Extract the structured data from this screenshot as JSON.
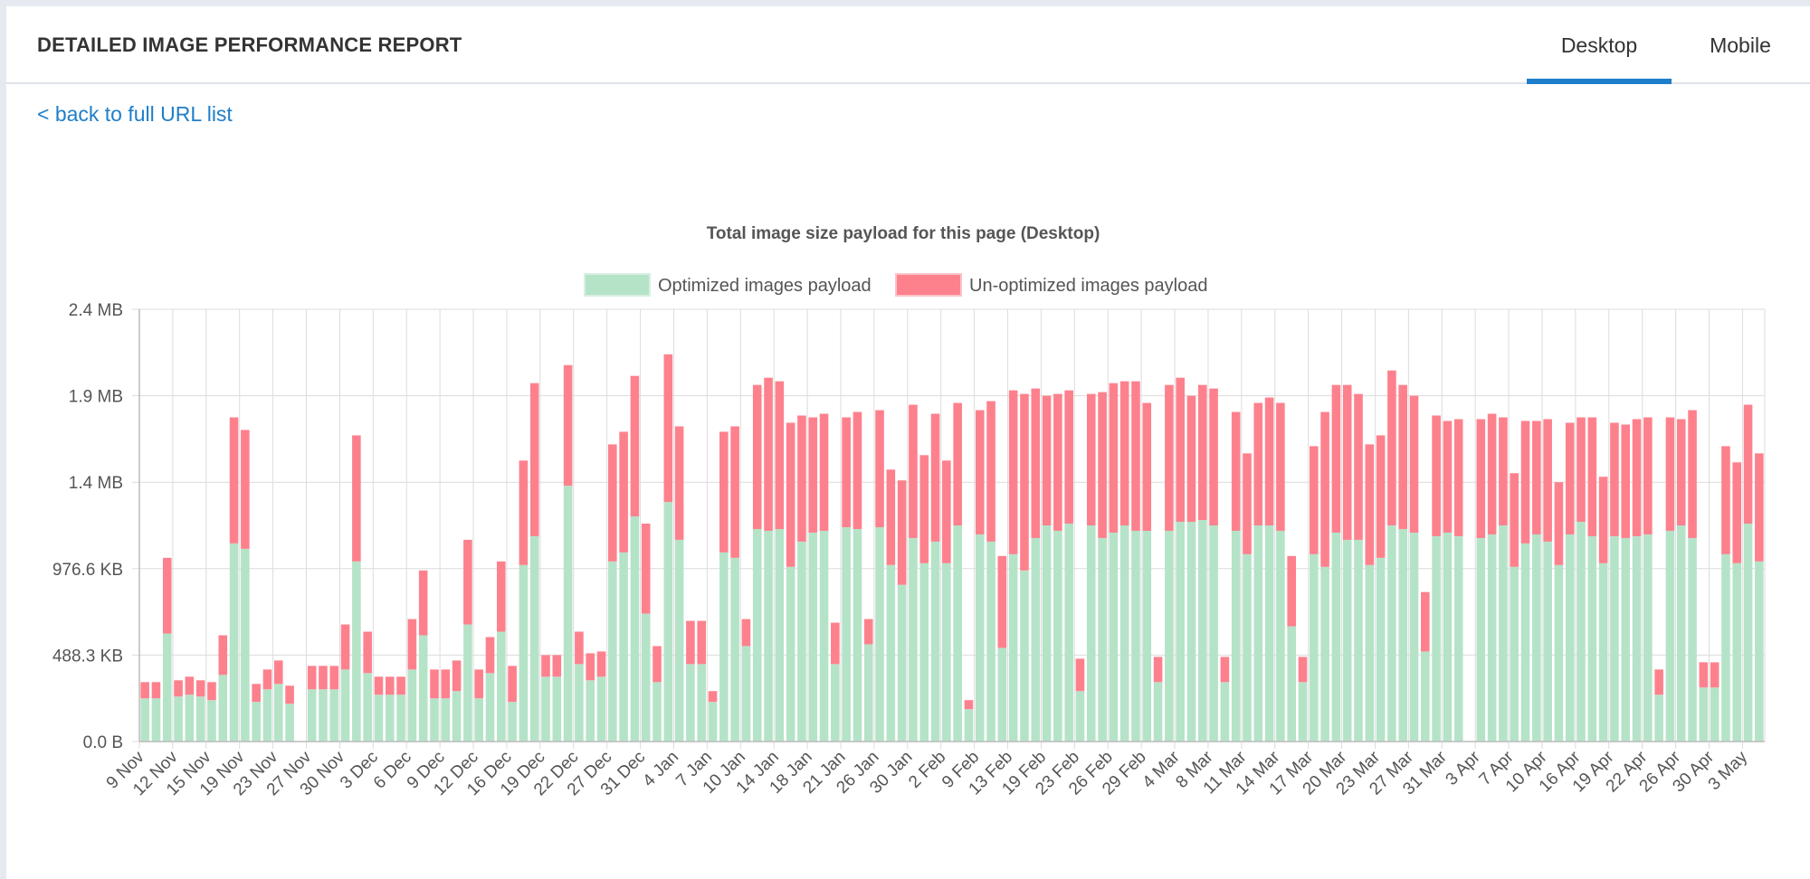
{
  "header": {
    "title": "DETAILED IMAGE PERFORMANCE REPORT"
  },
  "tabs": [
    {
      "label": "Desktop"
    },
    {
      "label": "Mobile"
    }
  ],
  "active_tab": "Desktop",
  "back_link": "< back to full URL list",
  "colors": {
    "optimized": "#b5e3c8",
    "unoptimized": "#fd818d",
    "accent": "#1f7ec9"
  },
  "chart_data": {
    "type": "bar",
    "stacked": true,
    "title": "Total image size payload for this page (Desktop)",
    "legend_position": "top",
    "grid": true,
    "ylim": [
      0,
      2.4
    ],
    "y_unit": "MB",
    "y_ticks": [
      "0.0 B",
      "488.3 KB",
      "976.6 KB",
      "1.4 MB",
      "1.9 MB",
      "2.4 MB"
    ],
    "x_tick_labels": [
      "9 Nov",
      "12 Nov",
      "15 Nov",
      "19 Nov",
      "23 Nov",
      "27 Nov",
      "30 Nov",
      "3 Dec",
      "6 Dec",
      "9 Dec",
      "12 Dec",
      "16 Dec",
      "19 Dec",
      "22 Dec",
      "27 Dec",
      "31 Dec",
      "4 Jan",
      "7 Jan",
      "10 Jan",
      "14 Jan",
      "18 Jan",
      "21 Jan",
      "26 Jan",
      "30 Jan",
      "2 Feb",
      "9 Feb",
      "13 Feb",
      "19 Feb",
      "23 Feb",
      "26 Feb",
      "29 Feb",
      "4 Mar",
      "8 Mar",
      "11 Mar",
      "14 Mar",
      "17 Mar",
      "20 Mar",
      "23 Mar",
      "27 Mar",
      "31 Mar",
      "3 Apr",
      "7 Apr",
      "10 Apr",
      "16 Apr",
      "19 Apr",
      "22 Apr",
      "26 Apr",
      "30 Apr",
      "3 May"
    ],
    "series": [
      {
        "name": "Optimized images payload",
        "values": [
          0.24,
          0.24,
          0.6,
          0.25,
          0.26,
          0.25,
          0.23,
          0.37,
          1.1,
          1.07,
          0.22,
          0.29,
          0.32,
          0.21,
          0,
          0.29,
          0.29,
          0.29,
          0.4,
          1.0,
          0.38,
          0.26,
          0.26,
          0.26,
          0.4,
          0.59,
          0.24,
          0.24,
          0.28,
          0.65,
          0.24,
          0.38,
          0.61,
          0.22,
          0.98,
          1.14,
          0.36,
          0.36,
          1.42,
          0.43,
          0.34,
          0.36,
          1.0,
          1.05,
          1.25,
          0.71,
          0.33,
          1.33,
          1.12,
          0.43,
          0.43,
          0.22,
          1.05,
          1.02,
          0.53,
          1.18,
          1.17,
          1.18,
          0.97,
          1.11,
          1.16,
          1.17,
          0.43,
          1.19,
          1.18,
          0.54,
          1.19,
          0.98,
          0.87,
          1.13,
          0.99,
          1.11,
          0.99,
          1.2,
          0.18,
          1.15,
          1.11,
          0.52,
          1.04,
          0.95,
          1.13,
          1.2,
          1.17,
          1.21,
          0.28,
          1.2,
          1.13,
          1.16,
          1.2,
          1.17,
          1.17,
          0.33,
          1.17,
          1.22,
          1.22,
          1.23,
          1.2,
          0.33,
          1.17,
          1.04,
          1.2,
          1.2,
          1.17,
          0.64,
          0.33,
          1.04,
          0.97,
          1.16,
          1.12,
          1.12,
          0.98,
          1.02,
          1.2,
          1.18,
          1.16,
          0.5,
          1.14,
          1.16,
          1.14,
          0,
          1.13,
          1.15,
          1.2,
          0.97,
          1.1,
          1.15,
          1.11,
          0.98,
          1.15,
          1.22,
          1.14,
          0.99,
          1.14,
          1.13,
          1.14,
          1.15,
          0.26,
          1.17,
          1.2,
          1.13,
          0.3,
          0.3,
          1.04,
          0.99,
          1.21,
          1.0
        ]
      },
      {
        "name": "Un-optimized images payload",
        "values": [
          0.09,
          0.09,
          0.42,
          0.09,
          0.1,
          0.09,
          0.1,
          0.22,
          0.7,
          0.66,
          0.1,
          0.11,
          0.13,
          0.1,
          0,
          0.13,
          0.13,
          0.13,
          0.25,
          0.7,
          0.23,
          0.1,
          0.1,
          0.1,
          0.28,
          0.36,
          0.16,
          0.16,
          0.17,
          0.47,
          0.16,
          0.2,
          0.39,
          0.2,
          0.58,
          0.85,
          0.12,
          0.12,
          0.67,
          0.18,
          0.15,
          0.14,
          0.65,
          0.67,
          0.78,
          0.5,
          0.2,
          0.82,
          0.63,
          0.24,
          0.24,
          0.06,
          0.67,
          0.73,
          0.15,
          0.8,
          0.85,
          0.82,
          0.8,
          0.7,
          0.64,
          0.65,
          0.23,
          0.61,
          0.65,
          0.14,
          0.65,
          0.53,
          0.58,
          0.74,
          0.6,
          0.71,
          0.57,
          0.68,
          0.05,
          0.69,
          0.78,
          0.51,
          0.91,
          0.98,
          0.83,
          0.72,
          0.76,
          0.74,
          0.18,
          0.73,
          0.81,
          0.83,
          0.8,
          0.83,
          0.71,
          0.14,
          0.81,
          0.8,
          0.7,
          0.75,
          0.76,
          0.14,
          0.66,
          0.56,
          0.68,
          0.71,
          0.71,
          0.39,
          0.14,
          0.6,
          0.86,
          0.82,
          0.86,
          0.81,
          0.67,
          0.68,
          0.86,
          0.8,
          0.76,
          0.33,
          0.67,
          0.62,
          0.65,
          0,
          0.66,
          0.67,
          0.6,
          0.52,
          0.68,
          0.63,
          0.68,
          0.46,
          0.62,
          0.58,
          0.66,
          0.48,
          0.63,
          0.63,
          0.65,
          0.65,
          0.14,
          0.63,
          0.59,
          0.71,
          0.14,
          0.14,
          0.6,
          0.56,
          0.66,
          0.6
        ]
      }
    ]
  }
}
